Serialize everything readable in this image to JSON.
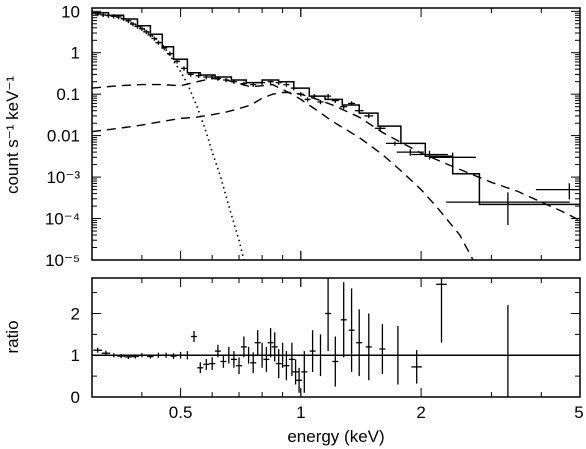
{
  "chart_data": [
    {
      "panel": "spectrum",
      "type": "line",
      "ylabel": "count s⁻¹ keV⁻¹",
      "xscale": "log",
      "yscale": "log",
      "xlim": [
        0.3,
        5.0
      ],
      "ylim": [
        1e-05,
        12
      ],
      "y_ticks": [
        {
          "value": 10,
          "label": "10"
        },
        {
          "value": 1,
          "label": "1"
        },
        {
          "value": 0.1,
          "label": "0.1"
        },
        {
          "value": 0.01,
          "label": "0.01"
        },
        {
          "value": 0.001,
          "label": "10⁻³"
        },
        {
          "value": 0.0001,
          "label": "10⁻⁴"
        },
        {
          "value": 1e-05,
          "label": "10⁻⁵"
        }
      ],
      "series": [
        {
          "style": "data-crosses",
          "points": [
            [
              0.31,
              8.6,
              0.01
            ],
            [
              0.32,
              8.2,
              0.01
            ],
            [
              0.33,
              7.9,
              0.01
            ],
            [
              0.34,
              7.6,
              0.01
            ],
            [
              0.35,
              7.3,
              0.01
            ],
            [
              0.36,
              6.6,
              0.01
            ],
            [
              0.37,
              5.9,
              0.01
            ],
            [
              0.38,
              4.9,
              0.01
            ],
            [
              0.39,
              4.3,
              0.01
            ],
            [
              0.4,
              3.8,
              0.01
            ],
            [
              0.41,
              3.2,
              0.01
            ],
            [
              0.42,
              2.7,
              0.01
            ],
            [
              0.43,
              2.2,
              0.01
            ],
            [
              0.44,
              1.75,
              0.01
            ],
            [
              0.455,
              1.3,
              0.012
            ],
            [
              0.47,
              0.95,
              0.012
            ],
            [
              0.49,
              0.62,
              0.015
            ],
            [
              0.51,
              0.42,
              0.015
            ],
            [
              0.53,
              0.3,
              0.015
            ],
            [
              0.555,
              0.28,
              0.018
            ],
            [
              0.58,
              0.26,
              0.02
            ],
            [
              0.6,
              0.26,
              0.02
            ],
            [
              0.62,
              0.24,
              0.02
            ],
            [
              0.65,
              0.22,
              0.02
            ],
            [
              0.68,
              0.2,
              0.02
            ],
            [
              0.72,
              0.18,
              0.02
            ],
            [
              0.76,
              0.17,
              0.02
            ],
            [
              0.8,
              0.19,
              0.02
            ],
            [
              0.84,
              0.2,
              0.02
            ],
            [
              0.88,
              0.19,
              0.025
            ],
            [
              0.92,
              0.17,
              0.025
            ],
            [
              0.96,
              0.14,
              0.025
            ],
            [
              1.0,
              0.1,
              0.03
            ],
            [
              1.04,
              0.075,
              0.03
            ],
            [
              1.08,
              0.09,
              0.03
            ],
            [
              1.12,
              0.065,
              0.03
            ],
            [
              1.17,
              0.09,
              0.03
            ],
            [
              1.22,
              0.07,
              0.04
            ],
            [
              1.28,
              0.05,
              0.04
            ],
            [
              1.34,
              0.06,
              0.04
            ],
            [
              1.4,
              0.04,
              0.05
            ],
            [
              1.48,
              0.03,
              0.05
            ],
            [
              1.58,
              0.015,
              0.06
            ],
            [
              1.72,
              0.0065,
              0.1
            ],
            [
              1.88,
              0.004,
              0.15
            ],
            [
              2.1,
              0.0035,
              0.2
            ],
            [
              2.4,
              0.003,
              0.25
            ],
            [
              3.3,
              0.00025,
              0.6
            ],
            [
              4.7,
              0.0005,
              0.35
            ]
          ]
        },
        {
          "style": "total-model-steps",
          "points": [
            [
              0.3,
              9.2
            ],
            [
              0.33,
              8.0
            ],
            [
              0.36,
              6.5
            ],
            [
              0.39,
              4.5
            ],
            [
              0.42,
              2.8
            ],
            [
              0.45,
              1.4
            ],
            [
              0.48,
              0.7
            ],
            [
              0.52,
              0.33
            ],
            [
              0.56,
              0.29
            ],
            [
              0.61,
              0.26
            ],
            [
              0.67,
              0.22
            ],
            [
              0.73,
              0.19
            ],
            [
              0.8,
              0.22
            ],
            [
              0.88,
              0.2
            ],
            [
              0.96,
              0.14
            ],
            [
              1.05,
              0.09
            ],
            [
              1.15,
              0.075
            ],
            [
              1.27,
              0.055
            ],
            [
              1.4,
              0.035
            ],
            [
              1.56,
              0.017
            ],
            [
              1.78,
              0.0065
            ],
            [
              2.05,
              0.0032
            ],
            [
              2.4,
              0.0012
            ],
            [
              2.8,
              0.00022
            ],
            [
              4.4,
              0.00022
            ],
            [
              5.0,
              0.00022
            ]
          ]
        },
        {
          "style": "dotted-component",
          "points": [
            [
              0.3,
              9.0
            ],
            [
              0.35,
              7.2
            ],
            [
              0.4,
              4.0
            ],
            [
              0.45,
              1.6
            ],
            [
              0.5,
              0.35
            ],
            [
              0.52,
              0.18
            ],
            [
              0.55,
              0.05
            ],
            [
              0.58,
              0.012
            ],
            [
              0.6,
              0.004
            ],
            [
              0.63,
              0.001
            ],
            [
              0.66,
              0.0002
            ],
            [
              0.7,
              3e-05
            ],
            [
              0.72,
              1e-05
            ]
          ]
        },
        {
          "style": "dashed-component-1",
          "points": [
            [
              0.3,
              0.14
            ],
            [
              0.35,
              0.16
            ],
            [
              0.4,
              0.17
            ],
            [
              0.45,
              0.17
            ],
            [
              0.5,
              0.16
            ],
            [
              0.55,
              0.2
            ],
            [
              0.6,
              0.24
            ],
            [
              0.65,
              0.22
            ],
            [
              0.7,
              0.18
            ],
            [
              0.75,
              0.15
            ],
            [
              0.8,
              0.16
            ],
            [
              0.85,
              0.17
            ],
            [
              0.9,
              0.13
            ],
            [
              0.95,
              0.1
            ],
            [
              1.0,
              0.075
            ],
            [
              1.1,
              0.04
            ],
            [
              1.2,
              0.022
            ],
            [
              1.4,
              0.009
            ],
            [
              1.6,
              0.0035
            ],
            [
              1.8,
              0.0013
            ],
            [
              2.0,
              0.0005
            ],
            [
              2.2,
              0.00018
            ],
            [
              2.5,
              4e-05
            ],
            [
              2.7,
              1e-05
            ]
          ]
        },
        {
          "style": "dashed-component-2",
          "points": [
            [
              0.3,
              0.0125
            ],
            [
              0.35,
              0.015
            ],
            [
              0.4,
              0.018
            ],
            [
              0.45,
              0.022
            ],
            [
              0.5,
              0.026
            ],
            [
              0.55,
              0.028
            ],
            [
              0.6,
              0.032
            ],
            [
              0.65,
              0.037
            ],
            [
              0.7,
              0.045
            ],
            [
              0.75,
              0.055
            ],
            [
              0.8,
              0.08
            ],
            [
              0.85,
              0.1
            ],
            [
              0.9,
              0.11
            ],
            [
              0.95,
              0.11
            ],
            [
              1.0,
              0.1
            ],
            [
              1.1,
              0.075
            ],
            [
              1.2,
              0.055
            ],
            [
              1.4,
              0.028
            ],
            [
              1.6,
              0.012
            ],
            [
              1.8,
              0.0065
            ],
            [
              2.0,
              0.0038
            ],
            [
              2.4,
              0.0018
            ],
            [
              3.0,
              0.00075
            ],
            [
              3.5,
              0.00045
            ],
            [
              4.0,
              0.00025
            ],
            [
              4.5,
              0.00015
            ],
            [
              5.0,
              9e-05
            ]
          ]
        }
      ]
    },
    {
      "panel": "ratio",
      "type": "scatter",
      "xlabel": "energy (keV)",
      "ylabel": "ratio",
      "xscale": "log",
      "xlim": [
        0.3,
        5.0
      ],
      "ylim": [
        0,
        2.85
      ],
      "x_ticks": [
        {
          "value": 0.5,
          "label": "0.5"
        },
        {
          "value": 1,
          "label": "1"
        },
        {
          "value": 2,
          "label": "2"
        },
        {
          "value": 5,
          "label": "5"
        }
      ],
      "y_ticks": [
        {
          "value": 0,
          "label": "0"
        },
        {
          "value": 1,
          "label": "1"
        },
        {
          "value": 2,
          "label": "2"
        }
      ],
      "reference_line": 1.0,
      "series": [
        {
          "style": "data-crosses",
          "points": [
            [
              0.31,
              1.12,
              0.06
            ],
            [
              0.325,
              1.05,
              0.06
            ],
            [
              0.34,
              1.0,
              0.05
            ],
            [
              0.355,
              0.98,
              0.05
            ],
            [
              0.37,
              0.96,
              0.05
            ],
            [
              0.385,
              0.97,
              0.05
            ],
            [
              0.4,
              1.0,
              0.05
            ],
            [
              0.42,
              0.97,
              0.05
            ],
            [
              0.44,
              1.0,
              0.06
            ],
            [
              0.46,
              1.0,
              0.06
            ],
            [
              0.48,
              0.98,
              0.07
            ],
            [
              0.5,
              1.0,
              0.08
            ],
            [
              0.52,
              1.0,
              0.1
            ],
            [
              0.54,
              1.45,
              0.13
            ],
            [
              0.56,
              0.7,
              0.13
            ],
            [
              0.58,
              0.78,
              0.13
            ],
            [
              0.6,
              0.8,
              0.15
            ],
            [
              0.62,
              1.1,
              0.15
            ],
            [
              0.64,
              0.85,
              0.15
            ],
            [
              0.66,
              1.0,
              0.2
            ],
            [
              0.68,
              0.9,
              0.2
            ],
            [
              0.7,
              0.75,
              0.2
            ],
            [
              0.72,
              1.2,
              0.25
            ],
            [
              0.74,
              1.0,
              0.2
            ],
            [
              0.76,
              0.82,
              0.25
            ],
            [
              0.78,
              1.3,
              0.3
            ],
            [
              0.8,
              1.0,
              0.3
            ],
            [
              0.82,
              0.9,
              0.3
            ],
            [
              0.84,
              1.3,
              0.35
            ],
            [
              0.86,
              1.2,
              0.35
            ],
            [
              0.88,
              0.8,
              0.35
            ],
            [
              0.9,
              1.0,
              0.3
            ],
            [
              0.92,
              0.75,
              0.35
            ],
            [
              0.95,
              0.9,
              0.4
            ],
            [
              0.97,
              0.6,
              0.3
            ],
            [
              0.99,
              0.4,
              0.3
            ],
            [
              1.02,
              0.6,
              0.5
            ],
            [
              1.07,
              1.1,
              0.5
            ],
            [
              1.12,
              1.0,
              0.5
            ],
            [
              1.17,
              2.0,
              0.9
            ],
            [
              1.22,
              0.85,
              0.6
            ],
            [
              1.28,
              1.85,
              0.9
            ],
            [
              1.34,
              1.6,
              1.0
            ],
            [
              1.4,
              1.3,
              0.8
            ],
            [
              1.48,
              1.2,
              0.8
            ],
            [
              1.6,
              1.15,
              0.6
            ],
            [
              1.75,
              1.0,
              0.7
            ],
            [
              1.95,
              0.72,
              0.4
            ],
            [
              2.25,
              2.7,
              1.4
            ],
            [
              3.3,
              1.0,
              1.2
            ]
          ]
        }
      ]
    }
  ]
}
